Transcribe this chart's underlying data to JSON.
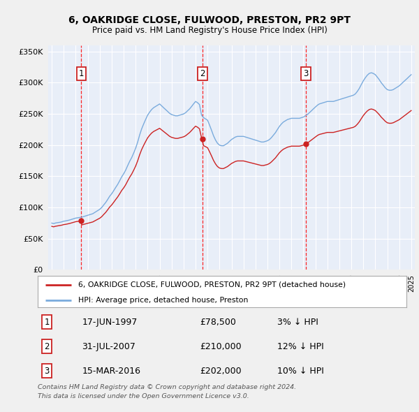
{
  "title": "6, OAKRIDGE CLOSE, FULWOOD, PRESTON, PR2 9PT",
  "subtitle": "Price paid vs. HM Land Registry's House Price Index (HPI)",
  "background_color": "#f0f0f0",
  "plot_bg_color": "#e8eef8",
  "grid_color": "#ffffff",
  "hpi_color": "#7aabdd",
  "price_color": "#cc2222",
  "ylim": [
    0,
    360000
  ],
  "yticks": [
    0,
    50000,
    100000,
    150000,
    200000,
    250000,
    300000,
    350000
  ],
  "ytick_labels": [
    "£0",
    "£50K",
    "£100K",
    "£150K",
    "£200K",
    "£250K",
    "£300K",
    "£350K"
  ],
  "trans_dates_num": [
    1997.46,
    2007.58,
    2016.21
  ],
  "trans_prices": [
    78500,
    210000,
    202000
  ],
  "trans_labels": [
    "1",
    "2",
    "3"
  ],
  "transaction_labels": [
    {
      "num": "1",
      "date": "17-JUN-1997",
      "price": "£78,500",
      "hpi": "3% ↓ HPI"
    },
    {
      "num": "2",
      "date": "31-JUL-2007",
      "price": "£210,000",
      "hpi": "12% ↓ HPI"
    },
    {
      "num": "3",
      "date": "15-MAR-2016",
      "price": "£202,000",
      "hpi": "10% ↓ HPI"
    }
  ],
  "legend_line1": "6, OAKRIDGE CLOSE, FULWOOD, PRESTON, PR2 9PT (detached house)",
  "legend_line2": "HPI: Average price, detached house, Preston",
  "footer1": "Contains HM Land Registry data © Crown copyright and database right 2024.",
  "footer2": "This data is licensed under the Open Government Licence v3.0.",
  "hpi_data_x": [
    1995.0,
    1995.08,
    1995.17,
    1995.25,
    1995.33,
    1995.42,
    1995.5,
    1995.58,
    1995.67,
    1995.75,
    1995.83,
    1995.92,
    1996.0,
    1996.08,
    1996.17,
    1996.25,
    1996.33,
    1996.42,
    1996.5,
    1996.58,
    1996.67,
    1996.75,
    1996.83,
    1996.92,
    1997.0,
    1997.08,
    1997.17,
    1997.25,
    1997.33,
    1997.42,
    1997.5,
    1997.58,
    1997.67,
    1997.75,
    1997.83,
    1997.92,
    1998.0,
    1998.08,
    1998.17,
    1998.25,
    1998.33,
    1998.42,
    1998.5,
    1998.58,
    1998.67,
    1998.75,
    1998.83,
    1998.92,
    1999.0,
    1999.17,
    1999.33,
    1999.5,
    1999.67,
    1999.83,
    2000.0,
    2000.17,
    2000.33,
    2000.5,
    2000.67,
    2000.83,
    2001.0,
    2001.17,
    2001.33,
    2001.5,
    2001.67,
    2001.83,
    2002.0,
    2002.17,
    2002.33,
    2002.5,
    2002.67,
    2002.83,
    2003.0,
    2003.17,
    2003.33,
    2003.5,
    2003.67,
    2003.83,
    2004.0,
    2004.17,
    2004.33,
    2004.5,
    2004.67,
    2004.83,
    2005.0,
    2005.17,
    2005.33,
    2005.5,
    2005.67,
    2005.83,
    2006.0,
    2006.17,
    2006.33,
    2006.5,
    2006.67,
    2006.83,
    2007.0,
    2007.17,
    2007.33,
    2007.5,
    2007.67,
    2007.83,
    2008.0,
    2008.17,
    2008.33,
    2008.5,
    2008.67,
    2008.83,
    2009.0,
    2009.17,
    2009.33,
    2009.5,
    2009.67,
    2009.83,
    2010.0,
    2010.17,
    2010.33,
    2010.5,
    2010.67,
    2010.83,
    2011.0,
    2011.17,
    2011.33,
    2011.5,
    2011.67,
    2011.83,
    2012.0,
    2012.17,
    2012.33,
    2012.5,
    2012.67,
    2012.83,
    2013.0,
    2013.17,
    2013.33,
    2013.5,
    2013.67,
    2013.83,
    2014.0,
    2014.17,
    2014.33,
    2014.5,
    2014.67,
    2014.83,
    2015.0,
    2015.17,
    2015.33,
    2015.5,
    2015.67,
    2015.83,
    2016.0,
    2016.17,
    2016.33,
    2016.5,
    2016.67,
    2016.83,
    2017.0,
    2017.17,
    2017.33,
    2017.5,
    2017.67,
    2017.83,
    2018.0,
    2018.17,
    2018.33,
    2018.5,
    2018.67,
    2018.83,
    2019.0,
    2019.17,
    2019.33,
    2019.5,
    2019.67,
    2019.83,
    2020.0,
    2020.17,
    2020.33,
    2020.5,
    2020.67,
    2020.83,
    2021.0,
    2021.17,
    2021.33,
    2021.5,
    2021.67,
    2021.83,
    2022.0,
    2022.17,
    2022.33,
    2022.5,
    2022.67,
    2022.83,
    2023.0,
    2023.17,
    2023.33,
    2023.5,
    2023.67,
    2023.83,
    2024.0,
    2024.17,
    2024.33,
    2024.5,
    2024.67,
    2024.83,
    2025.0
  ],
  "hpi_data_y": [
    75000,
    74500,
    74200,
    74800,
    75200,
    75500,
    75800,
    76000,
    76200,
    76500,
    77000,
    77500,
    78000,
    78200,
    78500,
    78800,
    79200,
    79600,
    80000,
    80500,
    81000,
    81500,
    82000,
    82500,
    83000,
    83200,
    83500,
    83800,
    84000,
    84200,
    84500,
    85000,
    85500,
    86000,
    86500,
    87000,
    87500,
    88000,
    88500,
    89000,
    89500,
    90000,
    91000,
    92000,
    93000,
    94000,
    95000,
    96000,
    97000,
    100000,
    104000,
    108000,
    113000,
    118000,
    122000,
    127000,
    132000,
    137000,
    143000,
    149000,
    154000,
    160000,
    167000,
    174000,
    180000,
    187000,
    195000,
    205000,
    216000,
    226000,
    234000,
    241000,
    248000,
    253000,
    257000,
    260000,
    262000,
    264000,
    266000,
    263000,
    260000,
    257000,
    254000,
    251000,
    249000,
    248000,
    247000,
    247000,
    248000,
    249000,
    250000,
    252000,
    255000,
    258000,
    262000,
    266000,
    270000,
    268000,
    265000,
    248000,
    244000,
    242000,
    240000,
    232000,
    224000,
    215000,
    208000,
    203000,
    200000,
    199000,
    199000,
    201000,
    203000,
    206000,
    209000,
    211000,
    213000,
    214000,
    214000,
    214000,
    214000,
    213000,
    212000,
    211000,
    210000,
    209000,
    208000,
    207000,
    206000,
    205000,
    205000,
    206000,
    207000,
    209000,
    212000,
    216000,
    220000,
    225000,
    230000,
    234000,
    237000,
    239000,
    241000,
    242000,
    243000,
    243000,
    243000,
    243000,
    243000,
    244000,
    245000,
    247000,
    249000,
    252000,
    255000,
    258000,
    261000,
    264000,
    266000,
    267000,
    268000,
    269000,
    270000,
    270000,
    270000,
    270000,
    271000,
    272000,
    273000,
    274000,
    275000,
    276000,
    277000,
    278000,
    279000,
    280000,
    282000,
    286000,
    291000,
    297000,
    303000,
    308000,
    312000,
    315000,
    316000,
    315000,
    313000,
    309000,
    305000,
    300000,
    296000,
    292000,
    289000,
    288000,
    288000,
    289000,
    291000,
    293000,
    295000,
    298000,
    301000,
    304000,
    307000,
    310000,
    313000
  ]
}
